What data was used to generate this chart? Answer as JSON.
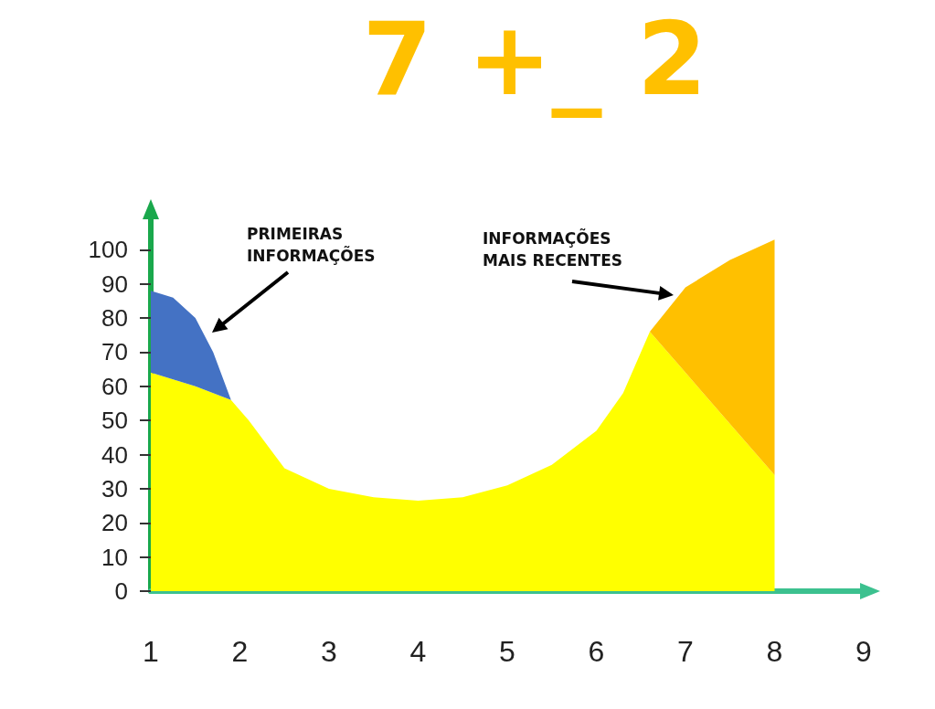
{
  "chart_data": {
    "type": "area",
    "title": "7 +_ 2",
    "stacked": true,
    "grid": false,
    "x": [
      1,
      1.25,
      1.5,
      1.7,
      1.9,
      2.1,
      2.5,
      3,
      3.5,
      4,
      4.5,
      5,
      5.5,
      6,
      6.3,
      6.6,
      7,
      7.5,
      8
    ],
    "series": [
      {
        "color": "#ffff00",
        "values": [
          64,
          62,
          60,
          58,
          56,
          50,
          36,
          30,
          27.5,
          26.5,
          27.5,
          31,
          37,
          47,
          58,
          76,
          64,
          49,
          34
        ]
      },
      {
        "color": "#4472c4",
        "values": [
          24,
          24,
          20,
          12,
          0,
          null,
          null,
          null,
          null,
          null,
          null,
          null,
          null,
          null,
          null,
          null,
          null,
          null,
          null
        ]
      },
      {
        "color": "#ffc000",
        "values": [
          null,
          null,
          null,
          null,
          null,
          null,
          null,
          null,
          null,
          null,
          null,
          null,
          null,
          null,
          null,
          0,
          25,
          48,
          69
        ]
      }
    ],
    "xlim": [
      1,
      9
    ],
    "xticks": [
      1,
      2,
      3,
      4,
      5,
      6,
      7,
      8,
      9
    ],
    "ylim": [
      0,
      110
    ],
    "yticks": [
      0,
      10,
      20,
      30,
      40,
      50,
      60,
      70,
      80,
      90,
      100
    ],
    "annotations": [
      "PRIMEIRAS\nINFORMAÇÕES",
      "INFORMAÇÕES\nMAIS RECENTES"
    ]
  }
}
